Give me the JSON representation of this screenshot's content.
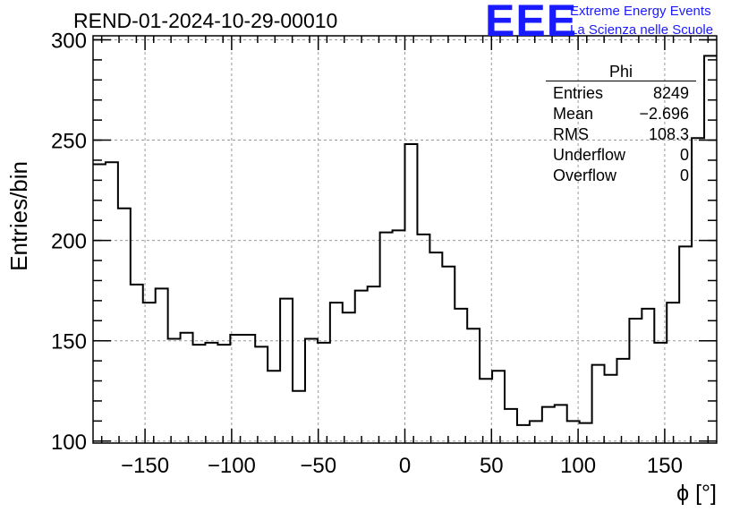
{
  "header": {
    "run_title": "REND-01-2024-10-29-00010",
    "logo": "EEE",
    "logo_line1": "Extreme Energy Events",
    "logo_line2": "La Scienza nelle Scuole",
    "logo_color": "#1a1aff"
  },
  "stats_box": {
    "name": "Phi",
    "rows": [
      {
        "label": "Entries",
        "value": "8249"
      },
      {
        "label": "Mean",
        "value": "−2.696"
      },
      {
        "label": "RMS",
        "value": "108.3"
      },
      {
        "label": "Underflow",
        "value": "0"
      },
      {
        "label": "Overflow",
        "value": "0"
      }
    ]
  },
  "chart_data": {
    "type": "bar",
    "style": "step-histogram",
    "title": "REND-01-2024-10-29-00010",
    "xlabel": "ϕ [°]",
    "ylabel": "Entries/bin",
    "xlim": [
      -180,
      180
    ],
    "ylim": [
      99,
      302
    ],
    "bin_width": 7.2,
    "x_ticks": [
      -150,
      -100,
      -50,
      0,
      50,
      100,
      150
    ],
    "y_ticks": [
      100,
      150,
      200,
      250,
      300
    ],
    "grid": true,
    "values": [
      238,
      239,
      216,
      178,
      169,
      176,
      151,
      154,
      148,
      149,
      148,
      153,
      153,
      147,
      135,
      171,
      125,
      151,
      149,
      169,
      164,
      175,
      177,
      204,
      205,
      248,
      203,
      194,
      187,
      166,
      156,
      131,
      135,
      116,
      108,
      110,
      117,
      118,
      110,
      109,
      138,
      133,
      141,
      161,
      166,
      149,
      169,
      197,
      251,
      292
    ]
  }
}
